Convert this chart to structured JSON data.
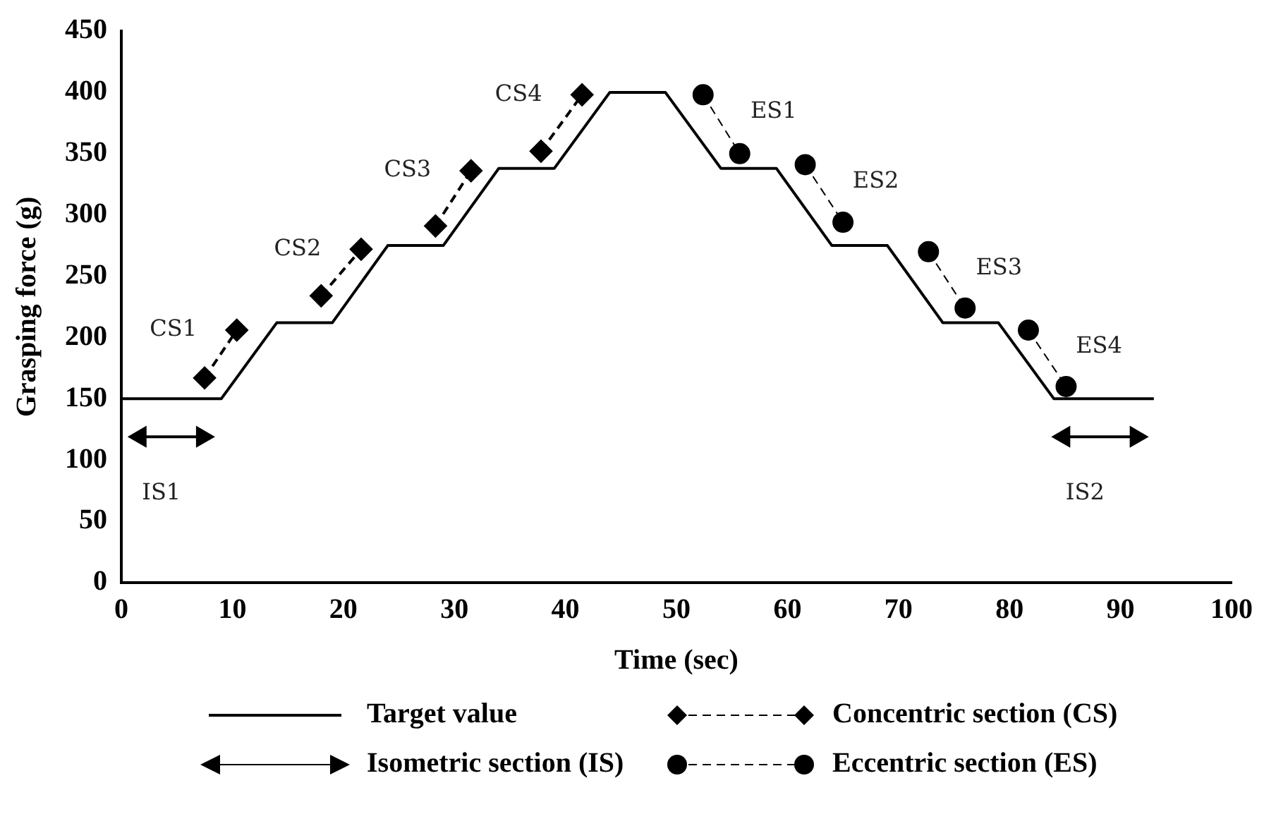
{
  "chart_data": {
    "type": "line",
    "xlabel": "Time (sec)",
    "ylabel": "Grasping force (g)",
    "xlim": [
      0,
      100
    ],
    "xticks": [
      0,
      10,
      20,
      30,
      40,
      50,
      60,
      70,
      80,
      90,
      100
    ],
    "ylim": [
      0,
      450
    ],
    "yticks": [
      0,
      50,
      100,
      150,
      200,
      250,
      300,
      350,
      400,
      450
    ],
    "grid": false,
    "legend": "bottom",
    "series": [
      {
        "name": "Target value",
        "color": "#000000",
        "marker": "none",
        "line_style": "solid",
        "x": [
          0,
          9,
          14,
          19,
          24,
          29,
          34,
          39,
          44,
          49,
          54,
          59,
          64,
          69,
          74,
          79,
          84,
          93
        ],
        "values": [
          150,
          150,
          212,
          212,
          275,
          275,
          338,
          338,
          400,
          400,
          338,
          338,
          275,
          275,
          212,
          212,
          150,
          150
        ]
      },
      {
        "name": "Concentric section (CS)",
        "color": "#000000",
        "marker": "diamond",
        "line_style": "dashed",
        "x": [
          7.5,
          10.4,
          null,
          18.0,
          21.6,
          null,
          28.3,
          31.5,
          null,
          37.8,
          41.5
        ],
        "values": [
          167,
          206,
          null,
          234,
          272,
          null,
          291,
          336,
          null,
          352,
          398
        ]
      },
      {
        "name": "Isometric section (IS)",
        "color": "#000000",
        "marker": "triangle",
        "line_style": "solid",
        "x": [
          1.7,
          7.3,
          null,
          84.9,
          91.4
        ],
        "values": [
          119,
          119,
          null,
          119,
          119
        ]
      },
      {
        "name": "Eccentric section (ES)",
        "color": "#000000",
        "marker": "circle",
        "line_style": "dashed",
        "x": [
          52.4,
          55.7,
          null,
          61.6,
          65.0,
          null,
          72.7,
          76.0,
          null,
          81.7,
          85.1
        ],
        "values": [
          398,
          350,
          null,
          341,
          294,
          null,
          270,
          224,
          null,
          206,
          160
        ]
      }
    ],
    "annotations": [
      {
        "text": "CS1",
        "x": 10.4,
        "y": 206
      },
      {
        "text": "CS2",
        "x": 21.6,
        "y": 272
      },
      {
        "text": "CS3",
        "x": 31.5,
        "y": 336
      },
      {
        "text": "CS4",
        "x": 41.5,
        "y": 398
      },
      {
        "text": "ES1",
        "x": 52.4,
        "y": 398
      },
      {
        "text": "ES2",
        "x": 61.6,
        "y": 341
      },
      {
        "text": "ES3",
        "x": 72.7,
        "y": 270
      },
      {
        "text": "ES4",
        "x": 81.7,
        "y": 206
      },
      {
        "text": "IS1",
        "x": 1.7,
        "y": 119
      },
      {
        "text": "IS2",
        "x": 84.9,
        "y": 119
      }
    ]
  }
}
